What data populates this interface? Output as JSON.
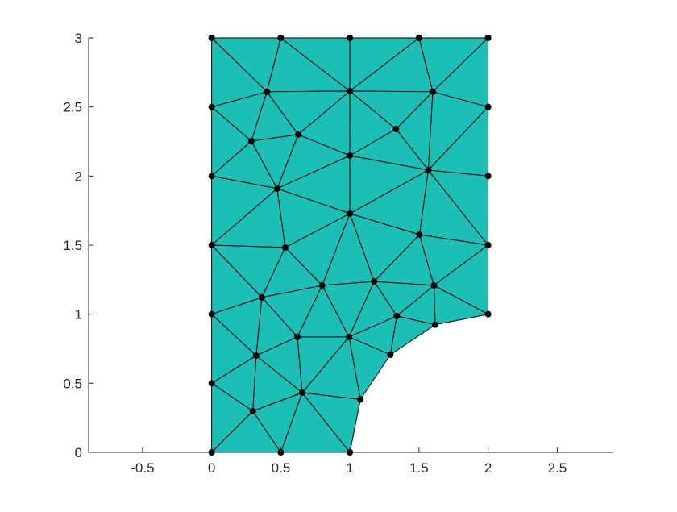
{
  "chart_data": {
    "type": "triangular-mesh",
    "title": "",
    "xlabel": "",
    "ylabel": "",
    "xlim": [
      -0.89,
      2.9
    ],
    "ylim": [
      0,
      3
    ],
    "xticks": [
      -0.5,
      0,
      0.5,
      1,
      1.5,
      2,
      2.5
    ],
    "xtick_labels": [
      "-0.5",
      "0",
      "0.5",
      "1",
      "1.5",
      "2",
      "2.5"
    ],
    "yticks": [
      0,
      0.5,
      1,
      1.5,
      2,
      2.5,
      3
    ],
    "ytick_labels": [
      "0",
      "0.5",
      "1",
      "1.5",
      "2",
      "2.5",
      "3"
    ],
    "grid": false,
    "face_color": "#1bbfb5",
    "edge_color": "#000000",
    "node_color": "#000000",
    "nodes": [
      [
        0,
        3
      ],
      [
        0.5,
        3
      ],
      [
        1,
        3
      ],
      [
        1.5,
        3
      ],
      [
        2,
        3
      ],
      [
        0.4,
        2.61
      ],
      [
        1.0,
        2.615
      ],
      [
        1.6,
        2.61
      ],
      [
        0,
        2.5
      ],
      [
        2,
        2.5
      ],
      [
        1.333,
        2.34
      ],
      [
        0.626,
        2.3
      ],
      [
        0.287,
        2.253
      ],
      [
        1.0,
        2.148
      ],
      [
        1.567,
        2.043
      ],
      [
        0,
        2
      ],
      [
        2,
        2
      ],
      [
        0.474,
        1.909
      ],
      [
        1.0,
        1.728
      ],
      [
        1.503,
        1.576
      ],
      [
        0,
        1.5
      ],
      [
        2,
        1.5
      ],
      [
        0.532,
        1.483
      ],
      [
        1.175,
        1.237
      ],
      [
        0.8,
        1.208
      ],
      [
        1.608,
        1.208
      ],
      [
        0.363,
        1.121
      ],
      [
        0,
        1
      ],
      [
        2,
        1
      ],
      [
        1.339,
        0.987
      ],
      [
        1.617,
        0.924
      ],
      [
        0.62,
        0.835
      ],
      [
        0.994,
        0.835
      ],
      [
        1.293,
        0.707
      ],
      [
        0.322,
        0.7
      ],
      [
        0,
        0.5
      ],
      [
        1.076,
        0.383
      ],
      [
        0.655,
        0.432
      ],
      [
        0.298,
        0.298
      ],
      [
        0,
        0
      ],
      [
        0.5,
        0
      ],
      [
        1,
        0
      ]
    ],
    "triangles": [
      [
        0,
        1,
        5
      ],
      [
        1,
        6,
        5
      ],
      [
        1,
        2,
        6
      ],
      [
        2,
        3,
        6
      ],
      [
        3,
        7,
        6
      ],
      [
        3,
        4,
        7
      ],
      [
        4,
        9,
        7
      ],
      [
        0,
        5,
        8
      ],
      [
        8,
        5,
        12
      ],
      [
        5,
        11,
        12
      ],
      [
        5,
        6,
        11
      ],
      [
        6,
        13,
        11
      ],
      [
        6,
        10,
        13
      ],
      [
        6,
        7,
        10
      ],
      [
        7,
        14,
        10
      ],
      [
        7,
        9,
        14
      ],
      [
        10,
        14,
        13
      ],
      [
        8,
        12,
        15
      ],
      [
        12,
        11,
        17
      ],
      [
        15,
        12,
        17
      ],
      [
        11,
        13,
        17
      ],
      [
        13,
        18,
        17
      ],
      [
        13,
        14,
        18
      ],
      [
        9,
        16,
        14
      ],
      [
        14,
        16,
        21
      ],
      [
        14,
        21,
        19
      ],
      [
        14,
        19,
        18
      ],
      [
        15,
        17,
        20
      ],
      [
        17,
        22,
        20
      ],
      [
        17,
        18,
        22
      ],
      [
        18,
        24,
        22
      ],
      [
        18,
        23,
        24
      ],
      [
        18,
        19,
        23
      ],
      [
        19,
        25,
        23
      ],
      [
        19,
        21,
        25
      ],
      [
        20,
        22,
        26
      ],
      [
        22,
        24,
        26
      ],
      [
        20,
        26,
        27
      ],
      [
        21,
        28,
        25
      ],
      [
        25,
        28,
        30
      ],
      [
        25,
        30,
        29
      ],
      [
        23,
        25,
        29
      ],
      [
        26,
        24,
        31
      ],
      [
        24,
        32,
        31
      ],
      [
        24,
        23,
        32
      ],
      [
        23,
        29,
        32
      ],
      [
        29,
        33,
        32
      ],
      [
        29,
        30,
        33
      ],
      [
        27,
        26,
        34
      ],
      [
        26,
        31,
        34
      ],
      [
        34,
        31,
        37
      ],
      [
        31,
        32,
        37
      ],
      [
        32,
        36,
        37
      ],
      [
        32,
        33,
        36
      ],
      [
        27,
        34,
        35
      ],
      [
        35,
        34,
        38
      ],
      [
        34,
        37,
        38
      ],
      [
        35,
        38,
        39
      ],
      [
        39,
        38,
        40
      ],
      [
        38,
        37,
        40
      ],
      [
        40,
        37,
        41
      ],
      [
        37,
        36,
        41
      ]
    ]
  }
}
